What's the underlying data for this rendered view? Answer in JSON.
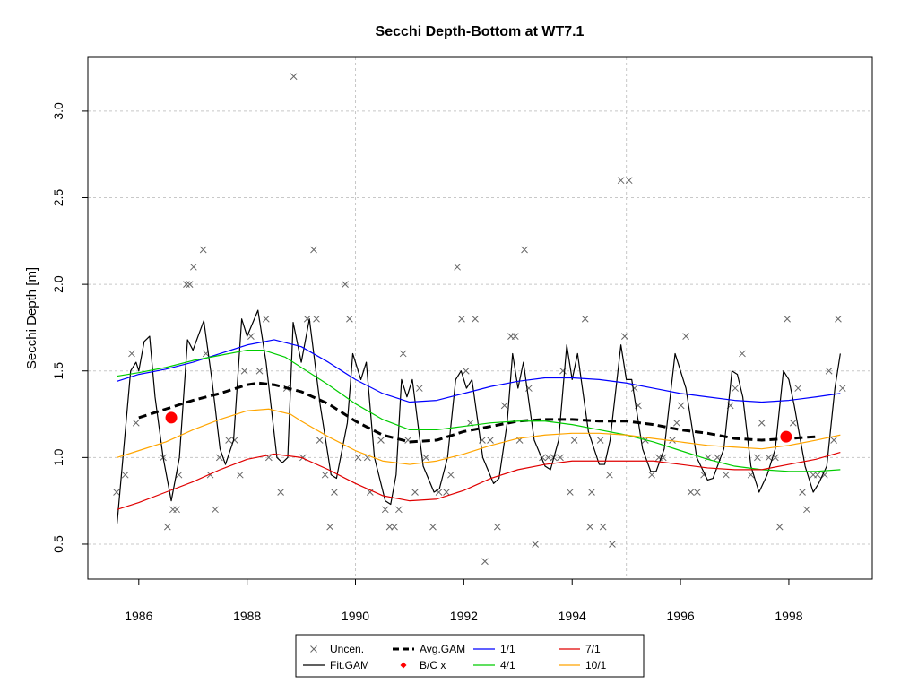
{
  "chart_data": {
    "type": "line",
    "title": "Secchi Depth-Bottom at WT7.1",
    "y_label": "Secchi Depth [m]",
    "xlim": [
      1985.06,
      1999.54
    ],
    "ylim": [
      0.298,
      3.31
    ],
    "xticks": [
      1986,
      1988,
      1990,
      1992,
      1994,
      1996,
      1998
    ],
    "yticks": [
      0.5,
      {
        "value": 1,
        "label": "1.0"
      },
      1.5,
      {
        "value": 2,
        "label": "2.0"
      },
      2.5,
      {
        "value": 3,
        "label": "3.0"
      }
    ],
    "grid": true,
    "xgrid": [
      1990,
      1995
    ],
    "legend": "bottom",
    "series": [
      {
        "name": "Uncen.",
        "kind": "scatter",
        "color": "#666666",
        "x": [
          1985.59,
          1985.75,
          1985.87,
          1985.95,
          1986.45,
          1986.53,
          1986.63,
          1986.7,
          1986.74,
          1986.88,
          1986.94,
          1987.01,
          1987.19,
          1987.24,
          1987.32,
          1987.41,
          1987.49,
          1987.66,
          1987.77,
          1987.87,
          1987.95,
          1988.07,
          1988.23,
          1988.35,
          1988.4,
          1988.62,
          1988.73,
          1988.86,
          1989.03,
          1989.11,
          1989.23,
          1989.28,
          1989.34,
          1989.44,
          1989.53,
          1989.61,
          1989.81,
          1989.89,
          1990.05,
          1990.22,
          1990.27,
          1990.47,
          1990.55,
          1990.63,
          1990.72,
          1990.8,
          1990.88,
          1990.97,
          1991.1,
          1991.18,
          1991.3,
          1991.43,
          1991.54,
          1991.68,
          1991.76,
          1991.88,
          1991.96,
          1992.04,
          1992.12,
          1992.21,
          1992.34,
          1992.39,
          1992.49,
          1992.62,
          1992.75,
          1992.87,
          1992.95,
          1993.03,
          1993.12,
          1993.2,
          1993.32,
          1993.45,
          1993.56,
          1993.66,
          1993.78,
          1993.83,
          1993.96,
          1994.04,
          1994.24,
          1994.33,
          1994.36,
          1994.52,
          1994.57,
          1994.69,
          1994.74,
          1994.9,
          1994.97,
          1995.05,
          1995.15,
          1995.22,
          1995.35,
          1995.47,
          1995.6,
          1995.68,
          1995.85,
          1995.93,
          1996.01,
          1996.1,
          1996.19,
          1996.31,
          1996.43,
          1996.51,
          1996.68,
          1996.84,
          1996.92,
          1997.01,
          1997.14,
          1997.3,
          1997.42,
          1997.5,
          1997.63,
          1997.75,
          1997.83,
          1997.97,
          1998.08,
          1998.17,
          1998.25,
          1998.33,
          1998.45,
          1998.53,
          1998.66,
          1998.74,
          1998.83,
          1998.91,
          1998.99
        ],
        "values": [
          0.8,
          0.9,
          1.6,
          1.2,
          1.0,
          0.6,
          0.7,
          0.7,
          0.9,
          2.0,
          2.0,
          2.1,
          2.2,
          1.6,
          0.9,
          0.7,
          1.0,
          1.1,
          1.1,
          0.9,
          1.5,
          1.7,
          1.5,
          1.8,
          1.0,
          0.8,
          1.4,
          3.2,
          1.0,
          1.8,
          2.2,
          1.8,
          1.1,
          0.9,
          0.6,
          0.8,
          2.0,
          1.8,
          1.0,
          1.0,
          0.8,
          1.1,
          0.7,
          0.6,
          0.6,
          0.7,
          1.6,
          1.1,
          0.8,
          1.4,
          1.0,
          0.6,
          0.8,
          0.8,
          0.9,
          2.1,
          1.8,
          1.5,
          1.2,
          1.8,
          1.1,
          0.4,
          1.1,
          0.6,
          1.3,
          1.7,
          1.7,
          1.1,
          2.2,
          1.4,
          0.5,
          1.0,
          1.0,
          1.0,
          1.0,
          1.5,
          0.8,
          1.1,
          1.8,
          0.6,
          0.8,
          1.1,
          0.6,
          0.9,
          0.5,
          2.6,
          1.7,
          2.6,
          1.4,
          1.3,
          1.1,
          0.9,
          1.0,
          1.0,
          1.1,
          1.2,
          1.3,
          1.7,
          0.8,
          0.8,
          0.9,
          1.0,
          1.0,
          0.9,
          1.3,
          1.4,
          1.6,
          0.9,
          1.0,
          1.2,
          1.0,
          1.0,
          0.6,
          1.8,
          1.2,
          1.4,
          0.8,
          0.7,
          0.9,
          0.9,
          0.9,
          1.5,
          1.1,
          1.8,
          1.4
        ]
      },
      {
        "name": "Fit.GAM",
        "kind": "line",
        "color": "#000000",
        "x": [
          1985.6,
          1985.85,
          1985.95,
          1986.0,
          1986.1,
          1986.2,
          1986.3,
          1986.45,
          1986.6,
          1986.75,
          1986.9,
          1987.0,
          1987.2,
          1987.35,
          1987.5,
          1987.6,
          1987.75,
          1987.9,
          1988.0,
          1988.2,
          1988.35,
          1988.55,
          1988.65,
          1988.75,
          1988.85,
          1989.0,
          1989.15,
          1989.35,
          1989.55,
          1989.65,
          1989.85,
          1989.95,
          1990.1,
          1990.2,
          1990.35,
          1990.55,
          1990.65,
          1990.75,
          1990.85,
          1990.95,
          1991.05,
          1991.25,
          1991.45,
          1991.55,
          1991.7,
          1991.85,
          1991.95,
          1992.05,
          1992.15,
          1992.35,
          1992.55,
          1992.65,
          1992.8,
          1992.9,
          1993.0,
          1993.1,
          1993.3,
          1993.5,
          1993.6,
          1993.75,
          1993.9,
          1994.0,
          1994.1,
          1994.3,
          1994.5,
          1994.6,
          1994.7,
          1994.9,
          1995.0,
          1995.1,
          1995.3,
          1995.45,
          1995.55,
          1995.7,
          1995.9,
          1996.0,
          1996.1,
          1996.3,
          1996.5,
          1996.6,
          1996.8,
          1996.95,
          1997.05,
          1997.15,
          1997.3,
          1997.45,
          1997.6,
          1997.75,
          1997.9,
          1998.0,
          1998.1,
          1998.3,
          1998.45,
          1998.55,
          1998.7,
          1998.85,
          1998.95
        ],
        "values": [
          0.62,
          1.5,
          1.55,
          1.5,
          1.67,
          1.7,
          1.35,
          1.0,
          0.75,
          1.0,
          1.68,
          1.62,
          1.79,
          1.45,
          1.05,
          0.96,
          1.1,
          1.8,
          1.7,
          1.85,
          1.55,
          1.0,
          0.97,
          1.0,
          1.78,
          1.55,
          1.8,
          1.3,
          0.9,
          0.88,
          1.2,
          1.6,
          1.45,
          1.55,
          1.0,
          0.75,
          0.73,
          0.9,
          1.45,
          1.35,
          1.45,
          0.95,
          0.8,
          0.82,
          1.0,
          1.45,
          1.5,
          1.4,
          1.45,
          1.0,
          0.85,
          0.88,
          1.2,
          1.6,
          1.4,
          1.55,
          1.1,
          0.95,
          0.93,
          1.1,
          1.65,
          1.45,
          1.6,
          1.15,
          0.96,
          0.96,
          1.1,
          1.65,
          1.45,
          1.45,
          1.05,
          0.92,
          0.92,
          1.05,
          1.6,
          1.5,
          1.4,
          1.0,
          0.87,
          0.88,
          1.05,
          1.5,
          1.48,
          1.35,
          0.95,
          0.8,
          0.9,
          1.05,
          1.5,
          1.45,
          1.3,
          0.95,
          0.8,
          0.85,
          0.95,
          1.4,
          1.6
        ]
      },
      {
        "name": "Avg.GAM",
        "kind": "line",
        "dash": true,
        "color": "#000000",
        "x": [
          1986.0,
          1986.5,
          1987.0,
          1987.5,
          1988.0,
          1988.2,
          1988.5,
          1989.0,
          1989.5,
          1990.0,
          1990.5,
          1991.0,
          1991.5,
          1992.0,
          1992.5,
          1993.0,
          1993.5,
          1994.0,
          1994.5,
          1995.0,
          1995.5,
          1996.0,
          1996.5,
          1997.0,
          1997.5,
          1998.0,
          1998.5
        ],
        "values": [
          1.23,
          1.28,
          1.33,
          1.37,
          1.42,
          1.43,
          1.42,
          1.38,
          1.31,
          1.21,
          1.13,
          1.09,
          1.1,
          1.15,
          1.18,
          1.21,
          1.22,
          1.22,
          1.21,
          1.21,
          1.19,
          1.16,
          1.14,
          1.11,
          1.1,
          1.11,
          1.12
        ]
      },
      {
        "name": "B/C x",
        "kind": "points",
        "color": "#ff0000",
        "x": [
          1986.6,
          1997.95
        ],
        "values": [
          1.23,
          1.12
        ]
      },
      {
        "name": "1/1",
        "kind": "line",
        "color": "#0000ff",
        "x": [
          1985.6,
          1986,
          1986.5,
          1987,
          1987.5,
          1988,
          1988.5,
          1989,
          1989.5,
          1990,
          1990.5,
          1991,
          1991.5,
          1992,
          1992.5,
          1993,
          1993.5,
          1994,
          1994.5,
          1995,
          1995.5,
          1996,
          1996.5,
          1997,
          1997.5,
          1998,
          1998.5,
          1998.95
        ],
        "values": [
          1.44,
          1.48,
          1.51,
          1.55,
          1.6,
          1.65,
          1.68,
          1.64,
          1.55,
          1.45,
          1.37,
          1.32,
          1.33,
          1.37,
          1.41,
          1.44,
          1.46,
          1.46,
          1.45,
          1.43,
          1.4,
          1.37,
          1.35,
          1.33,
          1.32,
          1.33,
          1.35,
          1.37
        ]
      },
      {
        "name": "4/1",
        "kind": "line",
        "color": "#00cc00",
        "x": [
          1985.6,
          1986,
          1986.5,
          1987,
          1987.5,
          1988,
          1988.3,
          1988.7,
          1989,
          1989.5,
          1990,
          1990.5,
          1991,
          1991.5,
          1992,
          1992.5,
          1993,
          1993.5,
          1994,
          1994.5,
          1995,
          1995.5,
          1996,
          1996.5,
          1997,
          1997.5,
          1998,
          1998.5,
          1998.95
        ],
        "values": [
          1.47,
          1.49,
          1.52,
          1.56,
          1.59,
          1.62,
          1.62,
          1.58,
          1.52,
          1.42,
          1.31,
          1.22,
          1.16,
          1.16,
          1.18,
          1.2,
          1.21,
          1.21,
          1.19,
          1.16,
          1.13,
          1.09,
          1.04,
          0.99,
          0.95,
          0.93,
          0.92,
          0.92,
          0.93
        ]
      },
      {
        "name": "7/1",
        "kind": "line",
        "color": "#e00000",
        "x": [
          1985.6,
          1986,
          1986.5,
          1987,
          1987.5,
          1988,
          1988.5,
          1989,
          1989.5,
          1990,
          1990.5,
          1991,
          1991.5,
          1992,
          1992.5,
          1993,
          1993.5,
          1994,
          1994.5,
          1995,
          1995.5,
          1996,
          1996.5,
          1997,
          1997.5,
          1998,
          1998.5,
          1998.95
        ],
        "values": [
          0.7,
          0.74,
          0.8,
          0.86,
          0.93,
          0.99,
          1.02,
          1.0,
          0.93,
          0.85,
          0.78,
          0.75,
          0.76,
          0.81,
          0.88,
          0.93,
          0.96,
          0.98,
          0.98,
          0.98,
          0.98,
          0.96,
          0.94,
          0.93,
          0.93,
          0.96,
          0.99,
          1.03
        ]
      },
      {
        "name": "10/1",
        "kind": "line",
        "color": "#ffa500",
        "x": [
          1985.6,
          1986,
          1986.5,
          1987,
          1987.5,
          1988,
          1988.4,
          1988.8,
          1989,
          1989.5,
          1990,
          1990.5,
          1991,
          1991.5,
          1992,
          1992.5,
          1993,
          1993.5,
          1994,
          1994.5,
          1995,
          1995.5,
          1996,
          1996.5,
          1997,
          1997.5,
          1998,
          1998.5,
          1998.95
        ],
        "values": [
          1.0,
          1.04,
          1.09,
          1.16,
          1.22,
          1.27,
          1.28,
          1.25,
          1.21,
          1.12,
          1.04,
          0.98,
          0.96,
          0.98,
          1.02,
          1.07,
          1.11,
          1.13,
          1.14,
          1.14,
          1.13,
          1.11,
          1.09,
          1.07,
          1.06,
          1.05,
          1.07,
          1.1,
          1.13
        ]
      }
    ]
  }
}
